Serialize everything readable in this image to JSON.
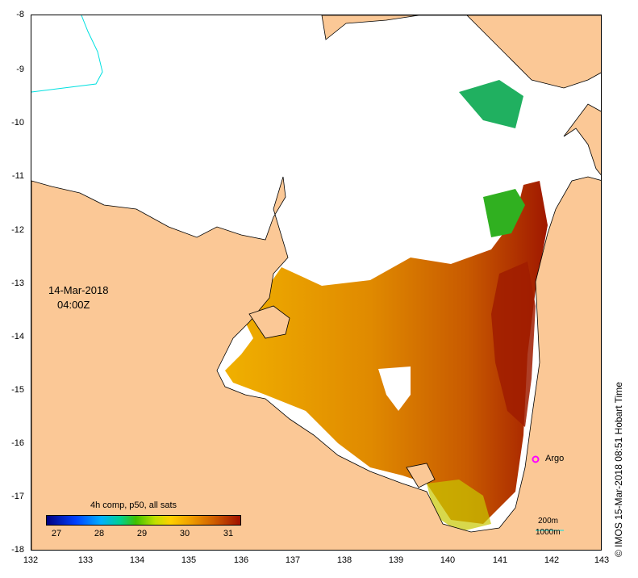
{
  "map": {
    "date": "14-Mar-2018",
    "time": "04:00Z",
    "x_ticks": [
      "132",
      "133",
      "134",
      "135",
      "136",
      "137",
      "138",
      "139",
      "140",
      "141",
      "142",
      "143"
    ],
    "y_ticks": [
      "-8",
      "-9",
      "-10",
      "-11",
      "-12",
      "-13",
      "-14",
      "-15",
      "-16",
      "-17",
      "-18"
    ],
    "lon_range": [
      132,
      143
    ],
    "lat_range": [
      -18,
      -8
    ],
    "colors": {
      "land": "#fbc896",
      "cloud": "#ffffff",
      "coastline": "#000000",
      "depth_200": "#00e0e0",
      "argo": "#ff00ff"
    }
  },
  "colorbar": {
    "title": "4h comp, p50, all sats",
    "ticks": [
      "27",
      "28",
      "29",
      "30",
      "31"
    ],
    "range": [
      26.8,
      31.2
    ]
  },
  "argo": {
    "label": "Argo",
    "lon": 141.7,
    "lat": -16.3
  },
  "legend": {
    "depth_200": "200m",
    "depth_1000": "1000m"
  },
  "credit": "© IMOS 15-Mar-2018 08:51 Hobart Time"
}
